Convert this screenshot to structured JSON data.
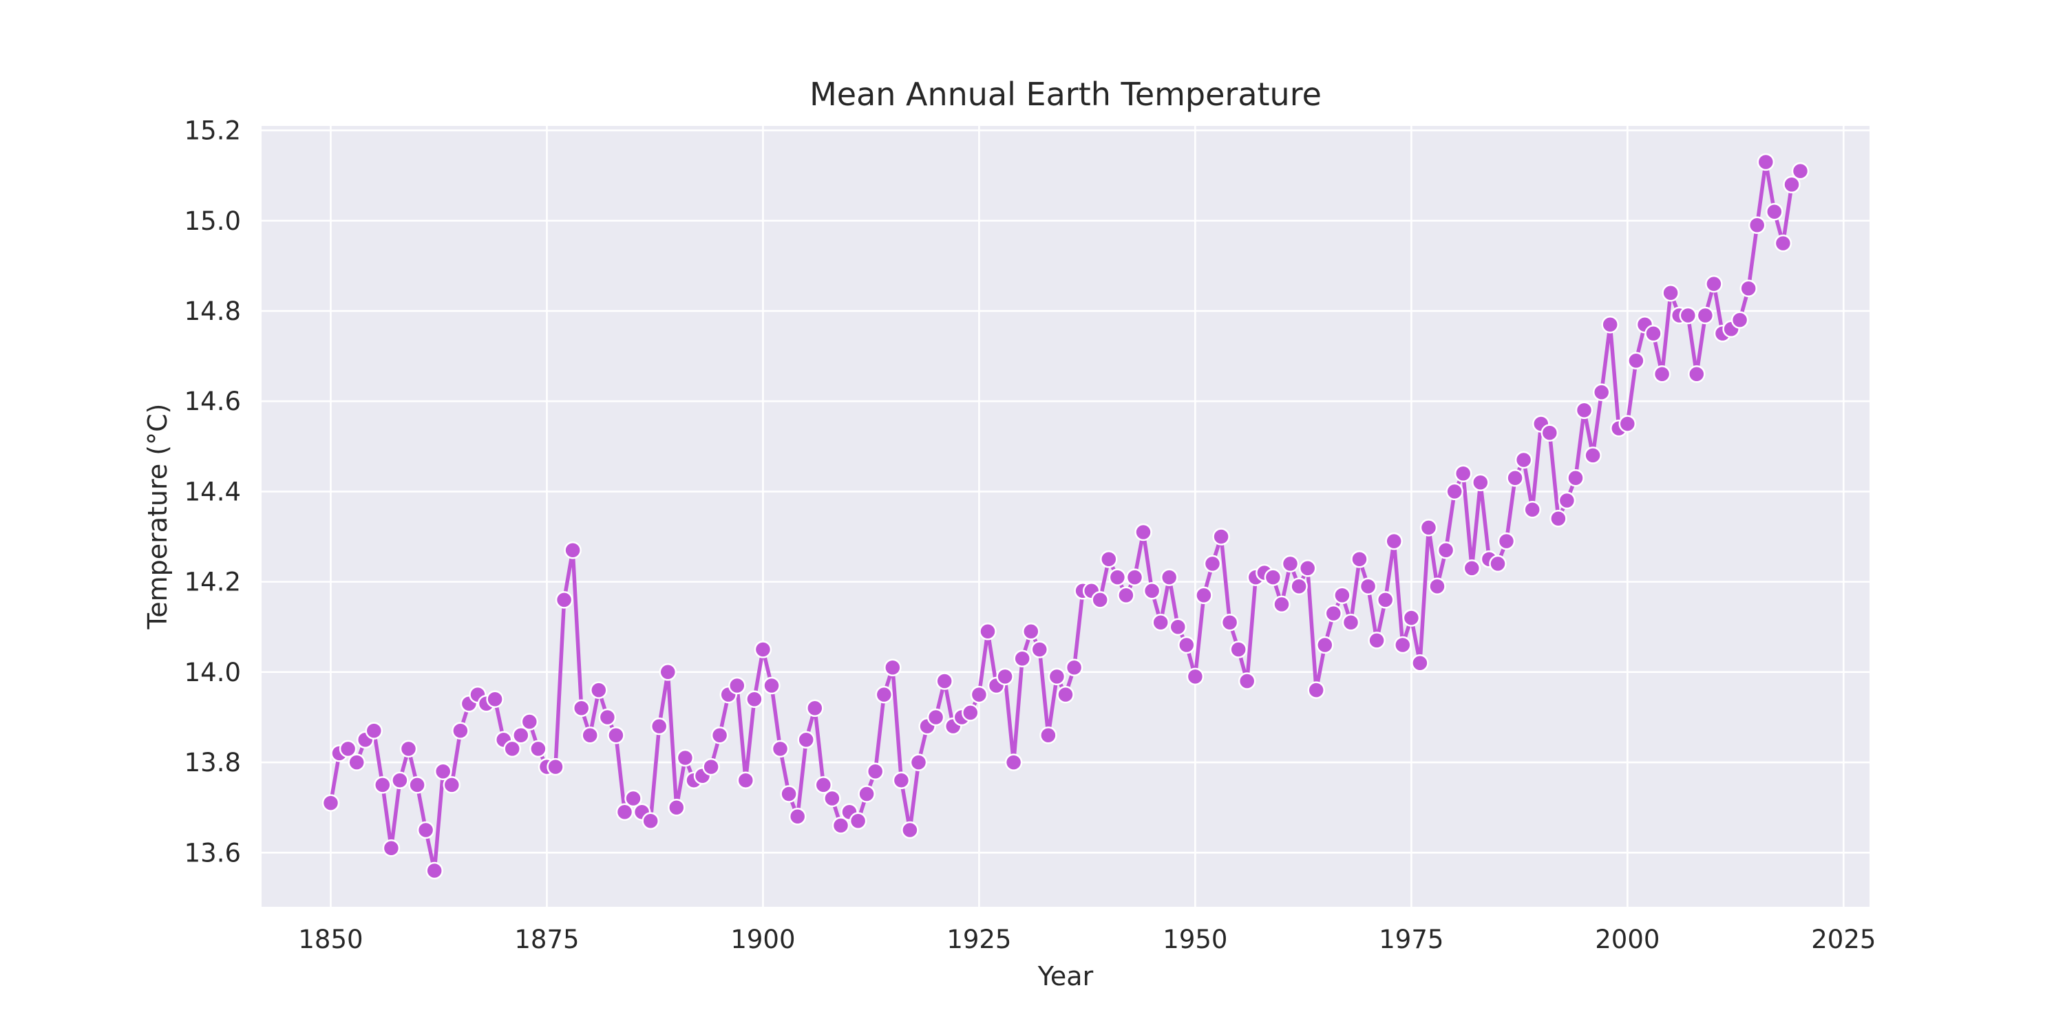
{
  "chart_data": {
    "type": "line",
    "title": "Mean Annual Earth Temperature",
    "xlabel": "Year",
    "ylabel": "Temperature (°C)",
    "xlim": [
      1842,
      2028
    ],
    "ylim": [
      13.48,
      15.21
    ],
    "xticks": [
      1850,
      1875,
      1900,
      1925,
      1950,
      1975,
      2000,
      2025
    ],
    "yticks": [
      13.6,
      13.8,
      14.0,
      14.2,
      14.4,
      14.6,
      14.8,
      15.0,
      15.2
    ],
    "grid": true,
    "legend": false,
    "style": {
      "background": "#eaeaf2",
      "grid_color": "#ffffff",
      "line_color": "#bf55d6",
      "marker_edge": "#ffffff"
    },
    "series": [
      {
        "x": [
          1850,
          1851,
          1852,
          1853,
          1854,
          1855,
          1856,
          1857,
          1858,
          1859,
          1860,
          1861,
          1862,
          1863,
          1864,
          1865,
          1866,
          1867,
          1868,
          1869,
          1870,
          1871,
          1872,
          1873,
          1874,
          1875,
          1876,
          1877,
          1878,
          1879,
          1880,
          1881,
          1882,
          1883,
          1884,
          1885,
          1886,
          1887,
          1888,
          1889,
          1890,
          1891,
          1892,
          1893,
          1894,
          1895,
          1896,
          1897,
          1898,
          1899,
          1900,
          1901,
          1902,
          1903,
          1904,
          1905,
          1906,
          1907,
          1908,
          1909,
          1910,
          1911,
          1912,
          1913,
          1914,
          1915,
          1916,
          1917,
          1918,
          1919,
          1920,
          1921,
          1922,
          1923,
          1924,
          1925,
          1926,
          1927,
          1928,
          1929,
          1930,
          1931,
          1932,
          1933,
          1934,
          1935,
          1936,
          1937,
          1938,
          1939,
          1940,
          1941,
          1942,
          1943,
          1944,
          1945,
          1946,
          1947,
          1948,
          1949,
          1950,
          1951,
          1952,
          1953,
          1954,
          1955,
          1956,
          1957,
          1958,
          1959,
          1960,
          1961,
          1962,
          1963,
          1964,
          1965,
          1966,
          1967,
          1968,
          1969,
          1970,
          1971,
          1972,
          1973,
          1974,
          1975,
          1976,
          1977,
          1978,
          1979,
          1980,
          1981,
          1982,
          1983,
          1984,
          1985,
          1986,
          1987,
          1988,
          1989,
          1990,
          1991,
          1992,
          1993,
          1994,
          1995,
          1996,
          1997,
          1998,
          1999,
          2000,
          2001,
          2002,
          2003,
          2004,
          2005,
          2006,
          2007,
          2008,
          2009,
          2010,
          2011,
          2012,
          2013,
          2014,
          2015,
          2016,
          2017,
          2018,
          2019,
          2020
        ],
        "y": [
          13.71,
          13.82,
          13.83,
          13.8,
          13.85,
          13.87,
          13.75,
          13.61,
          13.76,
          13.83,
          13.75,
          13.65,
          13.56,
          13.78,
          13.75,
          13.87,
          13.93,
          13.95,
          13.93,
          13.94,
          13.85,
          13.83,
          13.86,
          13.89,
          13.83,
          13.79,
          13.79,
          14.16,
          14.27,
          13.92,
          13.86,
          13.96,
          13.9,
          13.86,
          13.69,
          13.72,
          13.69,
          13.67,
          13.88,
          14.0,
          13.7,
          13.81,
          13.76,
          13.77,
          13.79,
          13.86,
          13.95,
          13.97,
          13.76,
          13.94,
          14.05,
          13.97,
          13.83,
          13.73,
          13.68,
          13.85,
          13.92,
          13.75,
          13.72,
          13.66,
          13.69,
          13.67,
          13.73,
          13.78,
          13.95,
          14.01,
          13.76,
          13.65,
          13.8,
          13.88,
          13.9,
          13.98,
          13.88,
          13.9,
          13.91,
          13.95,
          14.09,
          13.97,
          13.99,
          13.8,
          14.03,
          14.09,
          14.05,
          13.86,
          13.99,
          13.95,
          14.01,
          14.18,
          14.18,
          14.16,
          14.25,
          14.21,
          14.17,
          14.21,
          14.31,
          14.18,
          14.11,
          14.21,
          14.1,
          14.06,
          13.99,
          14.17,
          14.24,
          14.3,
          14.11,
          14.05,
          13.98,
          14.21,
          14.22,
          14.21,
          14.15,
          14.24,
          14.19,
          14.23,
          13.96,
          14.06,
          14.13,
          14.17,
          14.11,
          14.25,
          14.19,
          14.07,
          14.16,
          14.29,
          14.06,
          14.12,
          14.02,
          14.32,
          14.19,
          14.27,
          14.4,
          14.44,
          14.23,
          14.42,
          14.25,
          14.24,
          14.29,
          14.43,
          14.47,
          14.36,
          14.55,
          14.53,
          14.34,
          14.38,
          14.43,
          14.58,
          14.48,
          14.62,
          14.77,
          14.54,
          14.55,
          14.69,
          14.77,
          14.75,
          14.66,
          14.84,
          14.79,
          14.79,
          14.66,
          14.79,
          14.86,
          14.75,
          14.76,
          14.78,
          14.85,
          14.99,
          15.13,
          15.02,
          14.95,
          15.08,
          15.11
        ]
      }
    ]
  }
}
